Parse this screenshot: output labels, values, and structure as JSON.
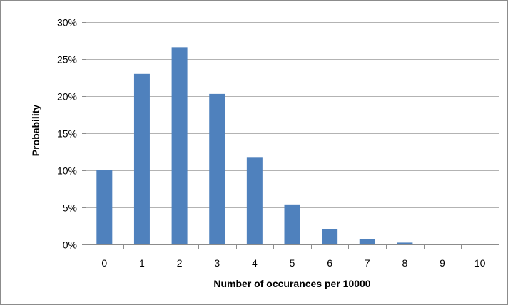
{
  "chart_data": {
    "type": "bar",
    "title": "",
    "xlabel": "Number of occurances per 10000",
    "ylabel": "Probability",
    "categories": [
      "0",
      "1",
      "2",
      "3",
      "4",
      "5",
      "6",
      "7",
      "8",
      "9",
      "10"
    ],
    "values": [
      10.0,
      23.0,
      26.6,
      20.3,
      11.7,
      5.4,
      2.1,
      0.7,
      0.25,
      0.05,
      0.01
    ],
    "ylim": [
      0,
      30
    ],
    "yticks": [
      0,
      5,
      10,
      15,
      20,
      25,
      30
    ],
    "ytick_labels": [
      "0%",
      "5%",
      "10%",
      "15%",
      "20%",
      "25%",
      "30%"
    ],
    "grid": true,
    "legend": "none",
    "bar_color": "#4f81bd",
    "grid_color": "#b3b3b3",
    "axis_color": "#8c8c8c"
  }
}
